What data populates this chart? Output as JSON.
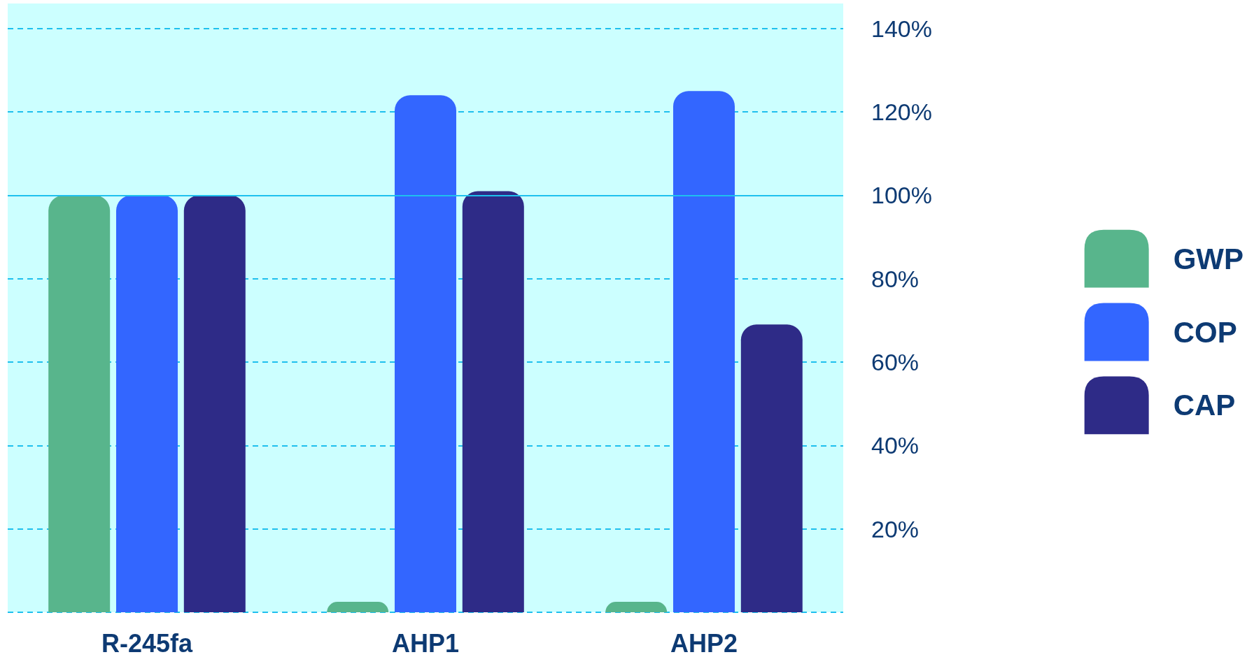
{
  "chart_data": {
    "type": "bar",
    "categories": [
      "R-245fa",
      "AHP1",
      "AHP2"
    ],
    "series": [
      {
        "name": "GWP",
        "color": "#58b58c",
        "values": [
          100,
          2.5,
          2.5
        ]
      },
      {
        "name": "COP",
        "color": "#3366ff",
        "values": [
          100,
          124,
          125
        ]
      },
      {
        "name": "CAP",
        "color": "#2e2b87",
        "values": [
          100,
          101,
          69
        ]
      }
    ],
    "ylim": [
      0,
      146
    ],
    "yticks": [
      {
        "value": 0,
        "label": null
      },
      {
        "value": 20,
        "label": "20%"
      },
      {
        "value": 40,
        "label": "40%"
      },
      {
        "value": 60,
        "label": "60%"
      },
      {
        "value": 80,
        "label": "80%"
      },
      {
        "value": 100,
        "label": "100%"
      },
      {
        "value": 120,
        "label": "120%"
      },
      {
        "value": 140,
        "label": "140%"
      }
    ],
    "ref_lines": [
      {
        "axis": "y",
        "value": 100,
        "label": null,
        "color": "#1ec0ee",
        "line_style": "solid"
      }
    ],
    "grid": "y",
    "legend": "right"
  }
}
